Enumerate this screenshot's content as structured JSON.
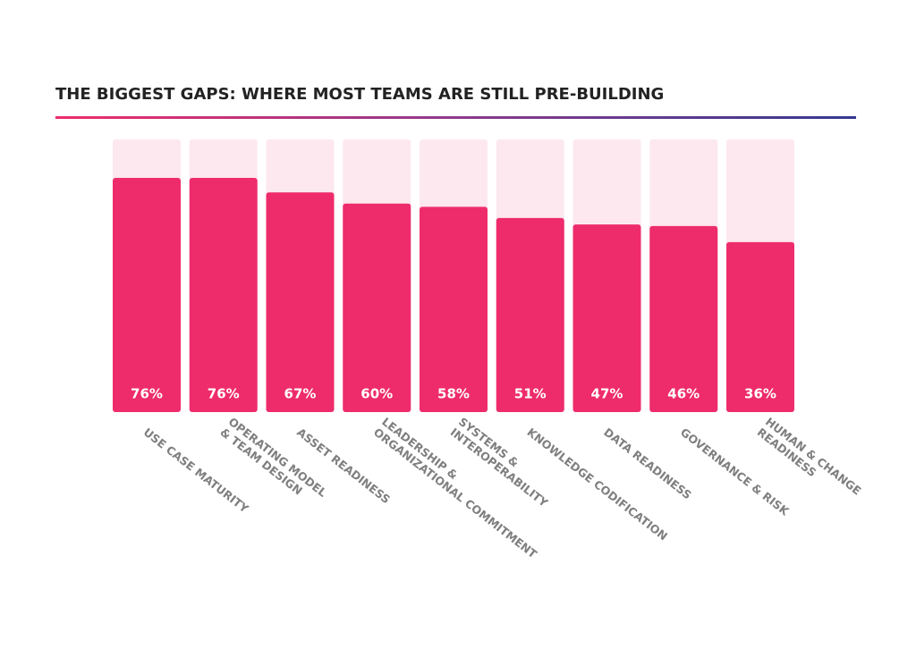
{
  "chart_data": {
    "type": "bar",
    "title": "THE BIGGEST GAPS: WHERE MOST TEAMS ARE STILL PRE-BUILDING",
    "categories": [
      "USE CASE MATURITY",
      "OPERATING MODEL\n& TEAM DESIGN",
      "ASSET READINESS",
      "LEADERSHIP &\nORGANIZATIONAL COMMITMENT",
      "SYSTEMS &\nINTEROPERABILITY",
      "KNOWLEDGE CODIFICATION",
      "DATA READINESS",
      "GOVERNANCE & RISK",
      "HUMAN & CHANGE\nREADINESS"
    ],
    "values": [
      76,
      76,
      67,
      60,
      58,
      51,
      47,
      46,
      36
    ],
    "value_labels": [
      "76%",
      "76%",
      "67%",
      "60%",
      "58%",
      "51%",
      "47%",
      "46%",
      "36%"
    ],
    "color": "#ee2c6b",
    "track_color": "#fde8ef",
    "ylim": [
      -70,
      100
    ]
  }
}
